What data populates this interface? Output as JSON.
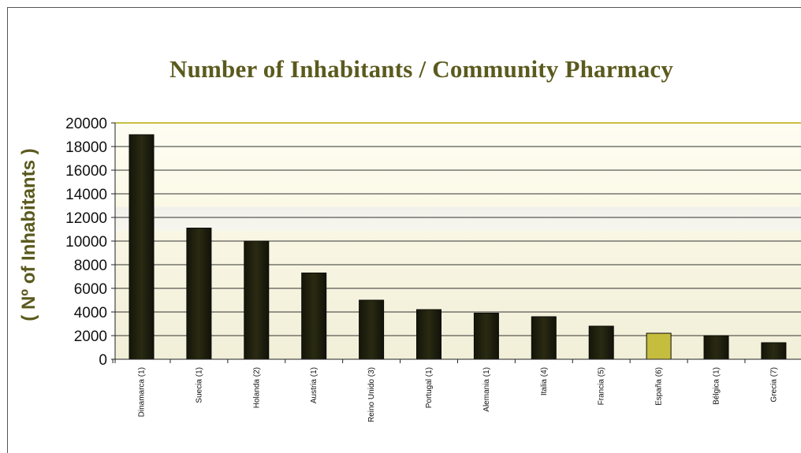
{
  "chart_data": {
    "type": "bar",
    "title": "Number of Inhabitants / Community Pharmacy",
    "ylabel": "( Nº of Inhabitants )",
    "xlabel": "",
    "ylim": [
      0,
      20000
    ],
    "yticks": [
      0,
      2000,
      4000,
      6000,
      8000,
      10000,
      12000,
      14000,
      16000,
      18000,
      20000
    ],
    "grid": true,
    "categories": [
      "Dinamarca (1)",
      "Suecia (1)",
      "Holanda (2)",
      "Austria (1)",
      "Reino Unido (3)",
      "Portugal (1)",
      "Alemania (1)",
      "Italia (4)",
      "Francia (5)",
      "España (6)",
      "Bélgica (1)",
      "Grecia (7)"
    ],
    "values": [
      19000,
      11100,
      10000,
      7300,
      5000,
      4200,
      3900,
      3600,
      2800,
      2200,
      2000,
      1400
    ],
    "highlight_category": "España (6)",
    "colors": {
      "bar": "#1f1f0c",
      "highlight": "#c4bd3e",
      "title": "#5b5a1e",
      "top_line": "#c8c040",
      "grid": "#333333",
      "band_light": "#fefdf2",
      "band_dark": "#f2f0dd"
    }
  }
}
